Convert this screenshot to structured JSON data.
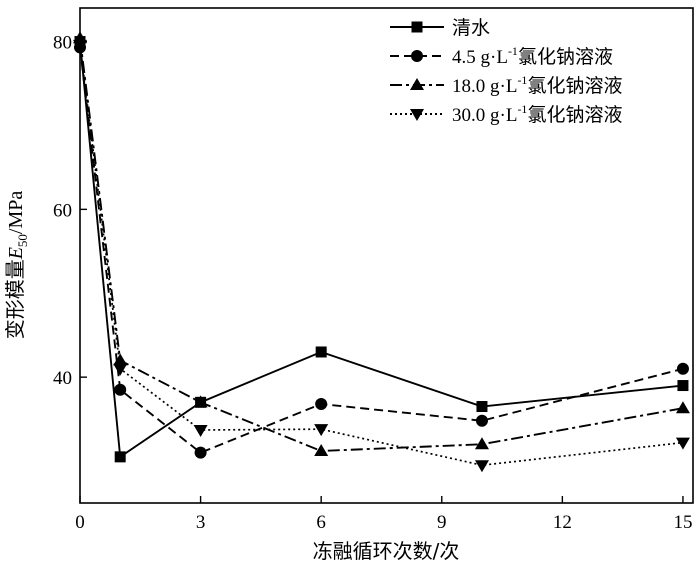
{
  "chart_data": {
    "type": "line",
    "x_ticks": [
      0,
      3,
      6,
      9,
      12,
      15
    ],
    "y_ticks": [
      40,
      60,
      80
    ],
    "xlim": [
      0,
      15.25
    ],
    "ylim": [
      25,
      84
    ],
    "xlabel": "冻融循环次数/次",
    "ylabel_parts": {
      "pre": "变形模量",
      "var": "E",
      "sub": "50",
      "post": "/MPa"
    },
    "grid": false,
    "legend_position": "top-right",
    "series": [
      {
        "name": "清水",
        "name_parts": {
          "pre": "清水"
        },
        "dash": "solid",
        "marker": "square",
        "points": [
          [
            0,
            80.0
          ],
          [
            1,
            30.5
          ],
          [
            3,
            37.0
          ],
          [
            6,
            43.0
          ],
          [
            10,
            36.5
          ],
          [
            15,
            39.0
          ]
        ]
      },
      {
        "name": "4.5 g·L-1氯化钠溶液",
        "name_parts": {
          "pre": "4.5 g·L",
          "sup": "-1",
          "post": "氯化钠溶液"
        },
        "dash": "dashed",
        "marker": "circle",
        "points": [
          [
            0,
            79.3
          ],
          [
            1,
            38.5
          ],
          [
            3,
            31.0
          ],
          [
            6,
            36.8
          ],
          [
            10,
            34.8
          ],
          [
            15,
            41.0
          ]
        ]
      },
      {
        "name": "18.0 g·L-1氯化钠溶液",
        "name_parts": {
          "pre": "18.0 g·L",
          "sup": "-1",
          "post": "氯化钠溶液"
        },
        "dash": "dashdot",
        "marker": "triangle-up",
        "points": [
          [
            0,
            80.4
          ],
          [
            1,
            42.0
          ],
          [
            3,
            37.0
          ],
          [
            6,
            31.2
          ],
          [
            10,
            32.0
          ],
          [
            15,
            36.3
          ]
        ]
      },
      {
        "name": "30.0 g·L-1氯化钠溶液",
        "name_parts": {
          "pre": "30.0 g·L",
          "sup": "-1",
          "post": "氯化钠溶液"
        },
        "dash": "dotted",
        "marker": "triangle-down",
        "points": [
          [
            0,
            79.6
          ],
          [
            1,
            41.0
          ],
          [
            3,
            33.7
          ],
          [
            6,
            33.8
          ],
          [
            10,
            29.5
          ],
          [
            15,
            32.2
          ]
        ]
      }
    ]
  }
}
